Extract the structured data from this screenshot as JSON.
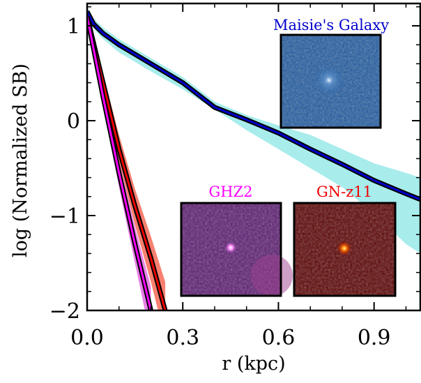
{
  "chart_data": {
    "type": "line",
    "xlabel": "r (kpc)",
    "ylabel": "log (Normalized SB)",
    "xlim": [
      0,
      1.045
    ],
    "ylim": [
      -2,
      1.235
    ],
    "xticks": [
      {
        "value": 0,
        "label": "0.0"
      },
      0.3,
      0.6,
      0.9
    ],
    "yticks": [
      {
        "value": -2,
        "label": "−2"
      },
      {
        "value": -1,
        "label": "−1"
      },
      0,
      1
    ],
    "xticks_minor": [
      0.1,
      0.2,
      0.4,
      0.5,
      0.7,
      0.8,
      1.0
    ],
    "yticks_minor": [
      -1.8,
      -1.6,
      -1.4,
      -1.2,
      -0.8,
      -0.6,
      -0.4,
      -0.2,
      0.2,
      0.4,
      0.6,
      0.8,
      1.2
    ],
    "series": [
      {
        "name": "Maisie's Galaxy",
        "color": "#0000cc",
        "band_color": "#a8ecec",
        "x": [
          0,
          0.02,
          0.05,
          0.1,
          0.2,
          0.3,
          0.4,
          0.5,
          0.6,
          0.7,
          0.8,
          0.9,
          1.0,
          1.045
        ],
        "values": [
          1.15,
          1.02,
          0.92,
          0.8,
          0.6,
          0.4,
          0.14,
          0.01,
          -0.13,
          -0.3,
          -0.46,
          -0.63,
          -0.77,
          -0.83
        ],
        "lower": [
          1.1,
          0.97,
          0.86,
          0.72,
          0.52,
          0.33,
          0.12,
          -0.1,
          -0.3,
          -0.5,
          -0.7,
          -0.98,
          -1.3,
          -1.4
        ],
        "upper": [
          1.2,
          1.08,
          0.98,
          0.86,
          0.66,
          0.46,
          0.2,
          0.06,
          -0.05,
          -0.15,
          -0.3,
          -0.45,
          -0.55,
          -0.6
        ]
      },
      {
        "name": "GN-z11",
        "color": "#ee0000",
        "band_color": "#f88070",
        "x": [
          0,
          0.05,
          0.1,
          0.15,
          0.2,
          0.245
        ],
        "values": [
          1.1,
          0.4,
          -0.3,
          -0.9,
          -1.45,
          -2.0
        ],
        "lower": [
          1.05,
          0.3,
          -0.45,
          -1.1,
          -1.7,
          -2.3
        ],
        "upper": [
          1.15,
          0.5,
          -0.15,
          -0.72,
          -1.22,
          -1.7
        ]
      },
      {
        "name": "GHZ2",
        "color": "#ff00ff",
        "band_color": "#e880e8",
        "x": [
          0,
          0.05,
          0.1,
          0.15,
          0.2
        ],
        "values": [
          1.1,
          0.25,
          -0.55,
          -1.3,
          -2.0
        ],
        "lower": [
          1.05,
          0.15,
          -0.7,
          -1.5,
          -2.3
        ],
        "upper": [
          1.15,
          0.35,
          -0.42,
          -1.12,
          -1.75
        ]
      }
    ]
  }
}
